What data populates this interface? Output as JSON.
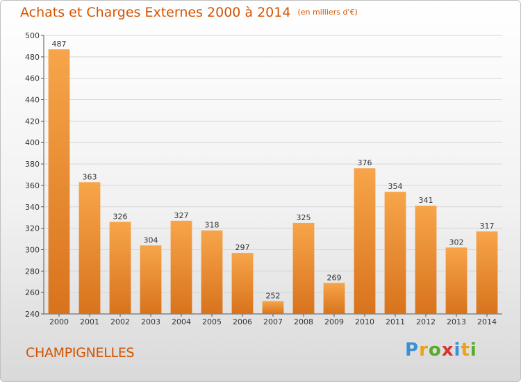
{
  "header": {
    "title": "Achats et Charges Externes 2000 à 2014",
    "unit": "(en milliers d'€)"
  },
  "footer": {
    "place": "CHAMPIGNELLES",
    "logo_letters": [
      "P",
      "r",
      "o",
      "x",
      "i",
      "t",
      "i"
    ],
    "logo_colors": [
      "#3a8fd6",
      "#e8a317",
      "#5aaa2a",
      "#d9342b",
      "#3a8fd6",
      "#e8a317",
      "#5aaa2a"
    ]
  },
  "colors": {
    "accent": "#d35400",
    "bar_light": "#f7a54a",
    "bar_dark": "#d8731c"
  },
  "chart_data": {
    "type": "bar",
    "title": "Achats et Charges Externes 2000 à 2014",
    "subtitle": "(en milliers d'€)",
    "categories": [
      "2000",
      "2001",
      "2002",
      "2003",
      "2004",
      "2005",
      "2006",
      "2007",
      "2008",
      "2009",
      "2010",
      "2011",
      "2012",
      "2013",
      "2014"
    ],
    "values": [
      487,
      363,
      326,
      304,
      327,
      318,
      297,
      252,
      325,
      269,
      376,
      354,
      341,
      302,
      317
    ],
    "ylim": [
      240,
      500
    ],
    "yticks": [
      240,
      260,
      280,
      300,
      320,
      340,
      360,
      380,
      400,
      420,
      440,
      460,
      480,
      500
    ],
    "grid": true,
    "legend": "none"
  }
}
